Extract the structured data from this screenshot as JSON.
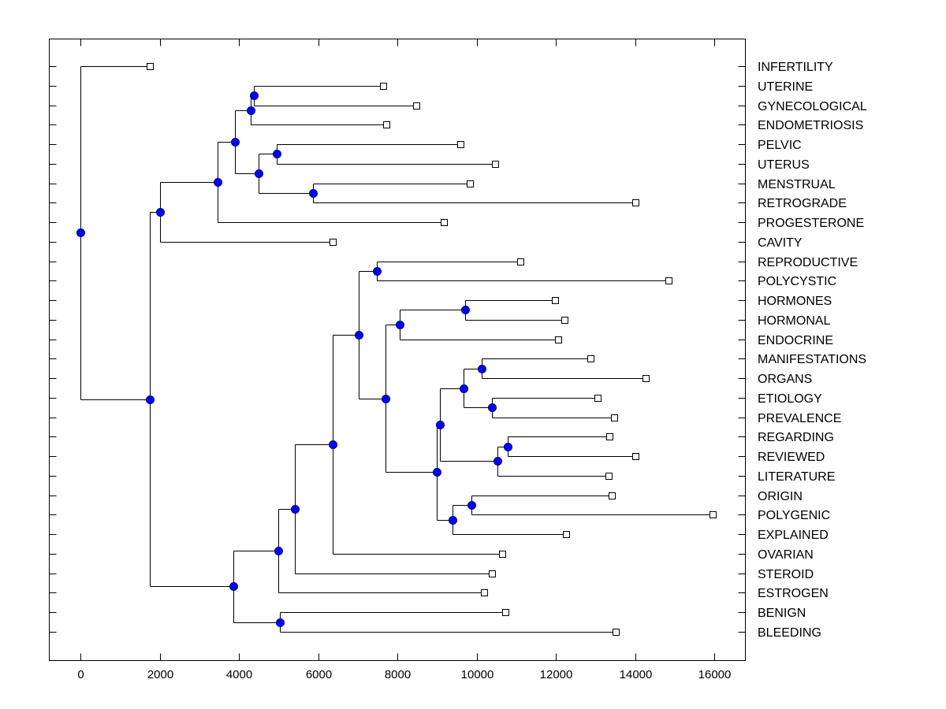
{
  "chart_data": {
    "type": "dendrogram",
    "title": "",
    "xlabel": "",
    "ylabel": "",
    "xlim": [
      -800,
      16800
    ],
    "xticks": [
      0,
      2000,
      4000,
      6000,
      8000,
      10000,
      12000,
      14000,
      16000
    ],
    "xtick_labels": [
      "0",
      "2000",
      "4000",
      "6000",
      "8000",
      "10000",
      "12000",
      "14000",
      "16000"
    ],
    "grid": false,
    "node_color": "#0000ff",
    "leaf_marker": "open-square",
    "leaves": [
      {
        "label": "INFERTILITY",
        "x": 1750
      },
      {
        "label": "UTERINE",
        "x": 7640
      },
      {
        "label": "GYNECOLOGICAL",
        "x": 8480
      },
      {
        "label": "ENDOMETRIOSIS",
        "x": 7720
      },
      {
        "label": "PELVIC",
        "x": 9590
      },
      {
        "label": "UTERUS",
        "x": 10470
      },
      {
        "label": "MENSTRUAL",
        "x": 9830
      },
      {
        "label": "RETROGRADE",
        "x": 14010
      },
      {
        "label": "PROGESTERONE",
        "x": 9170
      },
      {
        "label": "CAVITY",
        "x": 6370
      },
      {
        "label": "REPRODUCTIVE",
        "x": 11100
      },
      {
        "label": "POLYCYSTIC",
        "x": 14850
      },
      {
        "label": "HORMONES",
        "x": 11980
      },
      {
        "label": "HORMONAL",
        "x": 12220
      },
      {
        "label": "ENDOCRINE",
        "x": 12060
      },
      {
        "label": "MANIFESTATIONS",
        "x": 12880
      },
      {
        "label": "ORGANS",
        "x": 14270
      },
      {
        "label": "ETIOLOGY",
        "x": 13060
      },
      {
        "label": "PREVALENCE",
        "x": 13470
      },
      {
        "label": "REGARDING",
        "x": 13350
      },
      {
        "label": "REVIEWED",
        "x": 14010
      },
      {
        "label": "LITERATURE",
        "x": 13330
      },
      {
        "label": "ORIGIN",
        "x": 13410
      },
      {
        "label": "POLYGENIC",
        "x": 15960
      },
      {
        "label": "EXPLAINED",
        "x": 12260
      },
      {
        "label": "OVARIAN",
        "x": 10650
      },
      {
        "label": "STEROID",
        "x": 10390
      },
      {
        "label": "ESTROGEN",
        "x": 10190
      },
      {
        "label": "BENIGN",
        "x": 10730
      },
      {
        "label": "BLEEDING",
        "x": 13510
      }
    ],
    "nodes": [
      {
        "id": "E",
        "x": 4380,
        "children": [
          "L1",
          "L2"
        ]
      },
      {
        "id": "D",
        "x": 4300,
        "children": [
          "E",
          "L3"
        ]
      },
      {
        "id": "G",
        "x": 4950,
        "children": [
          "L4",
          "L5"
        ]
      },
      {
        "id": "H",
        "x": 5870,
        "children": [
          "L6",
          "L7"
        ]
      },
      {
        "id": "F",
        "x": 4500,
        "children": [
          "G",
          "H"
        ]
      },
      {
        "id": "C",
        "x": 3900,
        "children": [
          "D",
          "F"
        ]
      },
      {
        "id": "B",
        "x": 3460,
        "children": [
          "C",
          "L8"
        ]
      },
      {
        "id": "A",
        "x": 2010,
        "children": [
          "B",
          "L9"
        ]
      },
      {
        "id": "I",
        "x": 7480,
        "children": [
          "L10",
          "L11"
        ]
      },
      {
        "id": "L",
        "x": 9710,
        "children": [
          "L12",
          "L13"
        ]
      },
      {
        "id": "M",
        "x": 8060,
        "children": [
          "L",
          "L14"
        ]
      },
      {
        "id": "N",
        "x": 10130,
        "children": [
          "L15",
          "L16"
        ]
      },
      {
        "id": "P",
        "x": 10390,
        "children": [
          "L17",
          "L18"
        ]
      },
      {
        "id": "O",
        "x": 9670,
        "children": [
          "N",
          "P"
        ]
      },
      {
        "id": "R",
        "x": 10790,
        "children": [
          "L19",
          "L20"
        ]
      },
      {
        "id": "S",
        "x": 10530,
        "children": [
          "R",
          "L21"
        ]
      },
      {
        "id": "Q",
        "x": 9070,
        "children": [
          "O",
          "S"
        ]
      },
      {
        "id": "Og",
        "x": 9870,
        "children": [
          "L22",
          "L23"
        ]
      },
      {
        "id": "Ex",
        "x": 9390,
        "children": [
          "Og",
          "L24"
        ]
      },
      {
        "id": "T",
        "x": 8990,
        "children": [
          "Q",
          "Ex"
        ]
      },
      {
        "id": "K",
        "x": 7700,
        "children": [
          "M",
          "T"
        ]
      },
      {
        "id": "J",
        "x": 7020,
        "children": [
          "I",
          "K"
        ]
      },
      {
        "id": "Y",
        "x": 6370,
        "children": [
          "J",
          "L25"
        ]
      },
      {
        "id": "U",
        "x": 5410,
        "children": [
          "Y",
          "L26"
        ]
      },
      {
        "id": "V",
        "x": 5000,
        "children": [
          "U",
          "L27"
        ]
      },
      {
        "id": "X",
        "x": 5030,
        "children": [
          "L28",
          "L29"
        ]
      },
      {
        "id": "W",
        "x": 3860,
        "children": [
          "V",
          "X"
        ]
      },
      {
        "id": "Z",
        "x": 1750,
        "children": [
          "A",
          "W"
        ]
      },
      {
        "id": "ROOT",
        "x": 0,
        "children": [
          "L0",
          "Z"
        ]
      }
    ]
  }
}
